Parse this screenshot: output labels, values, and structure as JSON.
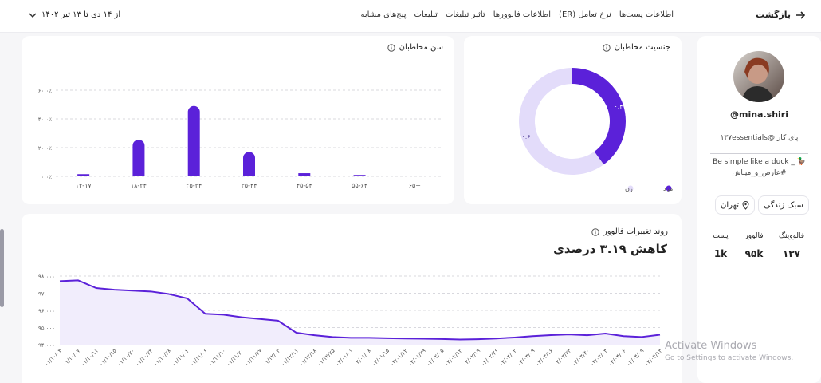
{
  "header": {
    "back": "بازگشت",
    "tabs": [
      "اطلاعات پست‌ها",
      "نرخ تعامل (ER)",
      "اطلاعات فالوورها",
      "تاثیر تبلیغات",
      "تبلیغات",
      "پیج‌های مشابه"
    ],
    "date_range": "از ۱۴ دی تا ۱۳ تیر ۱۴۰۲"
  },
  "profile": {
    "username": "@mina.shiri",
    "bio_line1": "پای کار @۱۳۷essentials",
    "bio_line2": "Be simple like a duck _ 🦆",
    "bio_line3": "#عارض_و_میناش",
    "tags": [
      "سبک زندگی",
      "تهران"
    ],
    "stats": [
      {
        "label": "فالووینگ",
        "value": "۱۳۷"
      },
      {
        "label": "فالوور",
        "value": "۹۵k"
      },
      {
        "label": "پست",
        "value": "1k"
      }
    ]
  },
  "chart_data": [
    {
      "type": "pie",
      "title": "جنسیت مخاطبان",
      "donut": true,
      "categories": [
        "مرد",
        "زن"
      ],
      "values": [
        0.4,
        0.6
      ],
      "value_labels": [
        "۰.۴",
        "۰.۶"
      ],
      "colors": [
        "#5b21d9",
        "#e3dcfa"
      ]
    },
    {
      "type": "bar",
      "title": "سن مخاطبان",
      "categories": [
        "۱۳-۱۷",
        "۱۸-۲۴",
        "۲۵-۳۴",
        "۳۵-۴۴",
        "۴۵-۵۴",
        "۵۵-۶۴",
        "۶۵+"
      ],
      "values": [
        1.5,
        25.5,
        49,
        17,
        2.2,
        1,
        0.5
      ],
      "color": "#5b21d9",
      "ylim": [
        0,
        60
      ],
      "yticks": [
        {
          "value": 0,
          "label": "۰.۰٪"
        },
        {
          "value": 20,
          "label": "۲۰.۰٪"
        },
        {
          "value": 40,
          "label": "۴۰.۰٪"
        },
        {
          "value": 60,
          "label": "۶۰.۰٪"
        }
      ],
      "grid": true
    },
    {
      "type": "line",
      "title": "روند تغییرات فالوور",
      "subtitle": "کاهش ۳.۱۹ درصدی",
      "categories": [
        "۰۱/۱۰/۰۴",
        "۰۱/۱۰/۰۷",
        "۰۱/۱۰/۱۱",
        "۰۱/۱۰/۱۵",
        "۰۱/۱۰/۲۰",
        "۰۱/۱۰/۲۴",
        "۰۱/۱۰/۲۸",
        "۰۱/۱۱/۰۲",
        "۰۱/۱۱/۰۶",
        "۰۱/۱۱/۱۰",
        "۰۱/۱۱/۲۰",
        "۰۱/۱۱/۲۷",
        "۰۱/۱۲/۰۴",
        "۰۱/۱۲/۱۱",
        "۰۱/۱۲/۱۸",
        "۰۱/۱۲/۲۵",
        "۰۲/۰۱/۰۱",
        "۰۲/۰۱/۰۸",
        "۰۲/۰۱/۱۵",
        "۰۲/۰۱/۲۲",
        "۰۲/۰۱/۲۹",
        "۰۲/۰۲/۰۵",
        "۰۲/۰۲/۱۲",
        "۰۲/۰۲/۱۹",
        "۰۲/۰۲/۲۶",
        "۰۲/۰۳/۰۲",
        "۰۲/۰۳/۰۹",
        "۰۲/۰۳/۱۶",
        "۰۲/۰۳/۲۳",
        "۰۲/۰۳/۳۰",
        "۰۲/۰۴/۰۳",
        "۰۲/۰۴/۰۶",
        "۰۲/۰۴/۰۹",
        "۰۲/۰۴/۱۳"
      ],
      "values": [
        97700,
        97750,
        97300,
        97200,
        97150,
        97100,
        96950,
        96700,
        95800,
        95750,
        95600,
        95500,
        95400,
        94700,
        94550,
        94450,
        94400,
        94400,
        94380,
        94360,
        94350,
        94330,
        94300,
        94320,
        94360,
        94420,
        94500,
        94560,
        94600,
        94550,
        94650,
        94500,
        94450,
        94580
      ],
      "color": "#5b21d9",
      "area_color": "#f1edfc",
      "ylim": [
        94000,
        98300
      ],
      "yticks": [
        {
          "value": 94000,
          "label": "۹۴,۰۰۰"
        },
        {
          "value": 95000,
          "label": "۹۵,۰۰۰"
        },
        {
          "value": 96000,
          "label": "۹۶,۰۰۰"
        },
        {
          "value": 97000,
          "label": "۹۷,۰۰۰"
        },
        {
          "value": 98000,
          "label": "۹۸,۰۰۰"
        }
      ],
      "grid": true
    }
  ],
  "watermark": {
    "title": "Activate Windows",
    "text": "Go to Settings to activate Windows."
  }
}
